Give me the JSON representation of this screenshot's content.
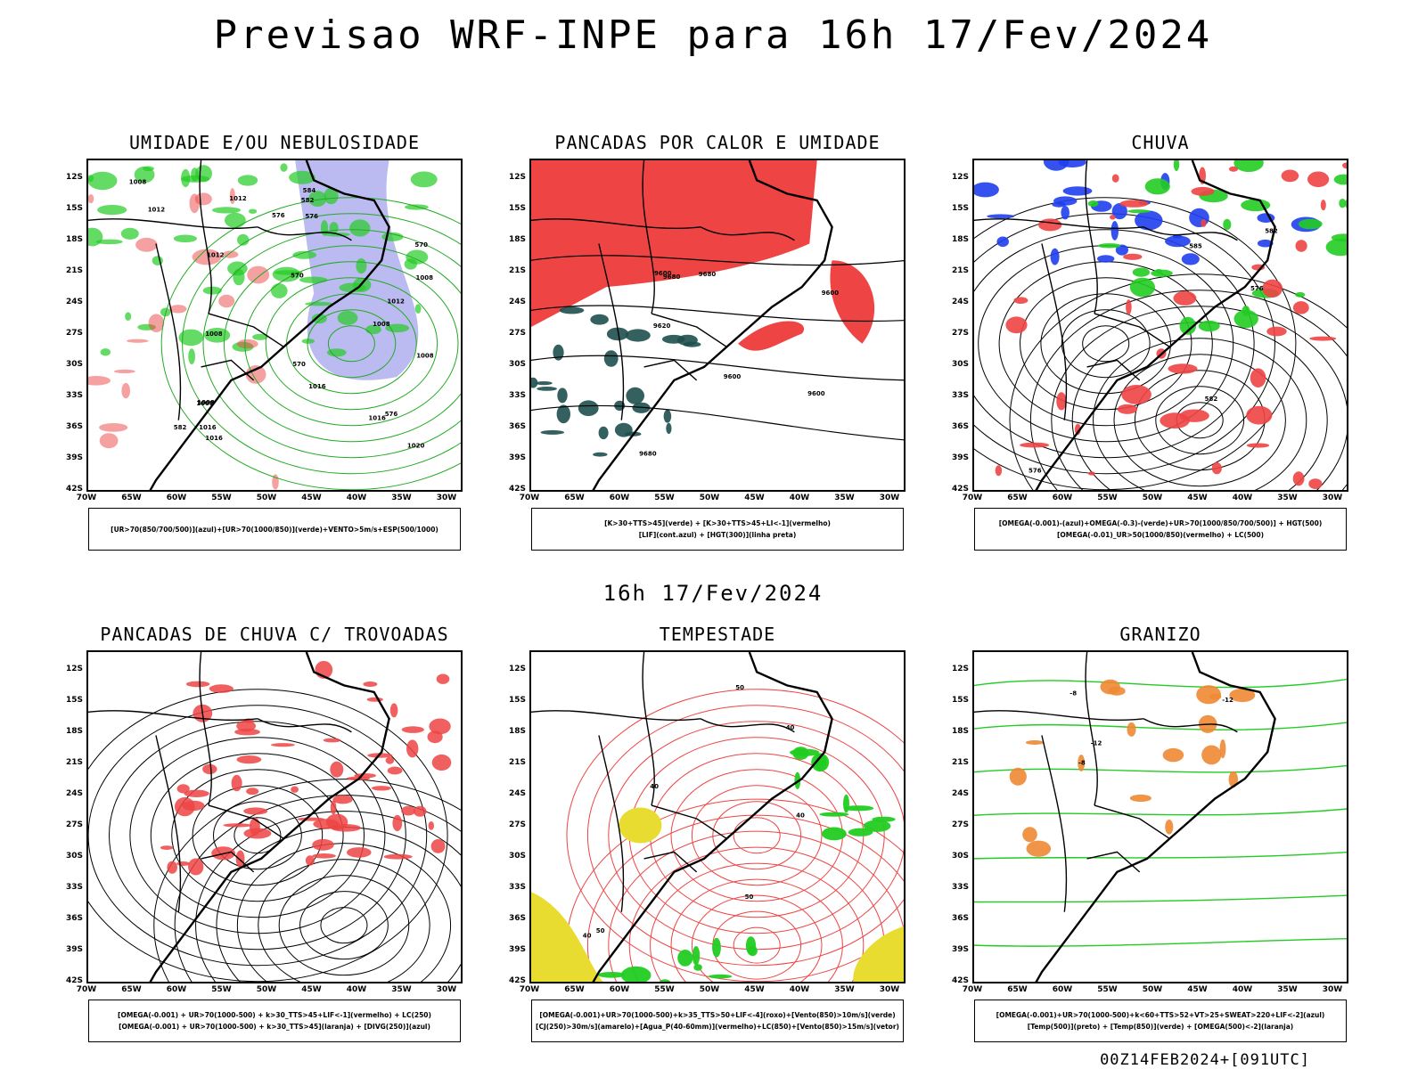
{
  "title": "Previsao WRF-INPE  para 16h 17/Fev/2024",
  "subtitle": "16h 17/Fev/2024",
  "footer": "00Z14FEB2024+[091UTC]",
  "lat_labels": [
    "12S",
    "15S",
    "18S",
    "21S",
    "24S",
    "27S",
    "30S",
    "33S",
    "36S",
    "39S",
    "42S"
  ],
  "lon_labels": [
    "70W",
    "65W",
    "60W",
    "55W",
    "50W",
    "45W",
    "40W",
    "35W",
    "30W"
  ],
  "panels": [
    {
      "title": "UMIDADE E/OU NEBULOSIDADE",
      "legend": [
        "[UR>70(850/700/500)](azul)+[UR>70(1000/850)](verde)+VENTO>5m/s+ESP(500/1000)"
      ],
      "contour_labels": [
        "1008",
        "1008",
        "1008",
        "1008",
        "1008",
        "1012",
        "1012",
        "1008",
        "1012",
        "1016",
        "1016",
        "1020",
        "1016",
        "1012",
        "576",
        "582",
        "570",
        "576",
        "570",
        "582",
        "570",
        "576",
        "584",
        "1008",
        "1016"
      ]
    },
    {
      "title": "PANCADAS POR CALOR E UMIDADE",
      "legend": [
        "[K>30+TTS>45](verde) + [K>30+TTS>45+LI<-1](vermelho)",
        "[LIF](cont.azul) + [HGT(300)](linha preta)"
      ],
      "contour_labels": [
        "9680",
        "9680",
        "9680",
        "9600",
        "9620",
        "9600",
        "9600",
        "9600"
      ]
    },
    {
      "title": "CHUVA",
      "legend": [
        "[OMEGA(-0.001)-(azul)+OMEGA(-0.3)-(verde)+UR>70(1000/850/700/500)] + HGT(500)",
        "[OMEGA(-0.01)_UR>50(1000/850)(vermelho) + LC(500)"
      ],
      "contour_labels": [
        "585",
        "582",
        "576",
        "576",
        "582"
      ]
    },
    {
      "title": "PANCADAS DE CHUVA C/ TROVOADAS",
      "legend": [
        "[OMEGA(-0.001) + UR>70(1000-500) + k>30_TTS>45+LIF<-1](vermelho) + LC(250)",
        "[OMEGA(-0.001) + UR>70(1000-500) + k>30_TTS>45](laranja) + [DIVG(250)](azul)"
      ],
      "contour_labels": []
    },
    {
      "title": "TEMPESTADE",
      "legend": [
        "[OMEGA(-0.001)+UR>70(1000-500)+k>35_TTS>50+LIF<-4](roxo)+[Vento(850)>10m/s](verde)",
        "[CJ(250)>30m/s](amarelo)+[Agua_P(40-60mm)](vermelho)+LC(850)+[Vento(850)>15m/s](vetor)"
      ],
      "contour_labels": [
        "50",
        "40",
        "40",
        "40",
        "50",
        "50",
        "40"
      ]
    },
    {
      "title": "GRANIZO",
      "legend": [
        "[OMEGA(-0.001)+UR>70(1000-500)+k<60+TTS>52+VT>25+SWEAT>220+LIF<-2](azul)",
        "[Temp(500)](preto) + [Temp(850)](verde) + [OMEGA(500)<-2](laranja)"
      ],
      "contour_labels": [
        "-12",
        "-12",
        "-8",
        "-8"
      ]
    }
  ],
  "colors": {
    "frame": "#000000",
    "humidity_blue": "#aaaaee",
    "humidity_green": "#22cc22",
    "wind_red": "#ee4444",
    "teal": "#1f4f4f",
    "precip_blue": "#1f3fee",
    "precip_green": "#22cc22",
    "storm_yellow": "#e8dc30",
    "hail_orange": "#ee8833"
  }
}
